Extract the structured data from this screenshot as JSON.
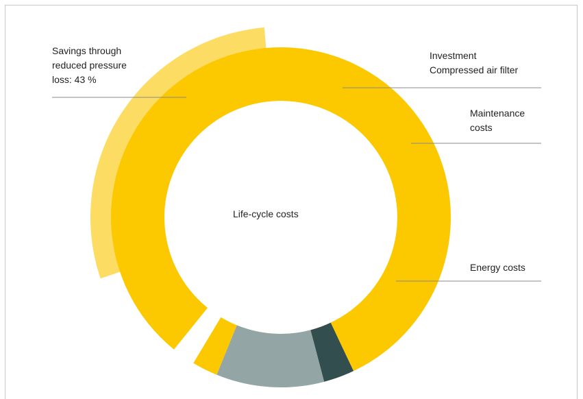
{
  "chart_data": {
    "type": "pie",
    "center_label": "Life-cycle costs",
    "outer_ring": {
      "label": "Savings through\nreduced pressure\nloss: 43 %",
      "value": 43,
      "color": "#fddc63"
    },
    "slices": [
      {
        "label": "Energy costs",
        "value": 84,
        "color": "#fcc800"
      },
      {
        "label": "Investment\nCompressed air filter",
        "value": 3,
        "color": "#334e4f"
      },
      {
        "label": "Maintenance\ncosts",
        "value": 10.5,
        "color": "#93a5a5"
      },
      {
        "label": "",
        "value": 2.5,
        "color": "#fcc800"
      }
    ]
  }
}
